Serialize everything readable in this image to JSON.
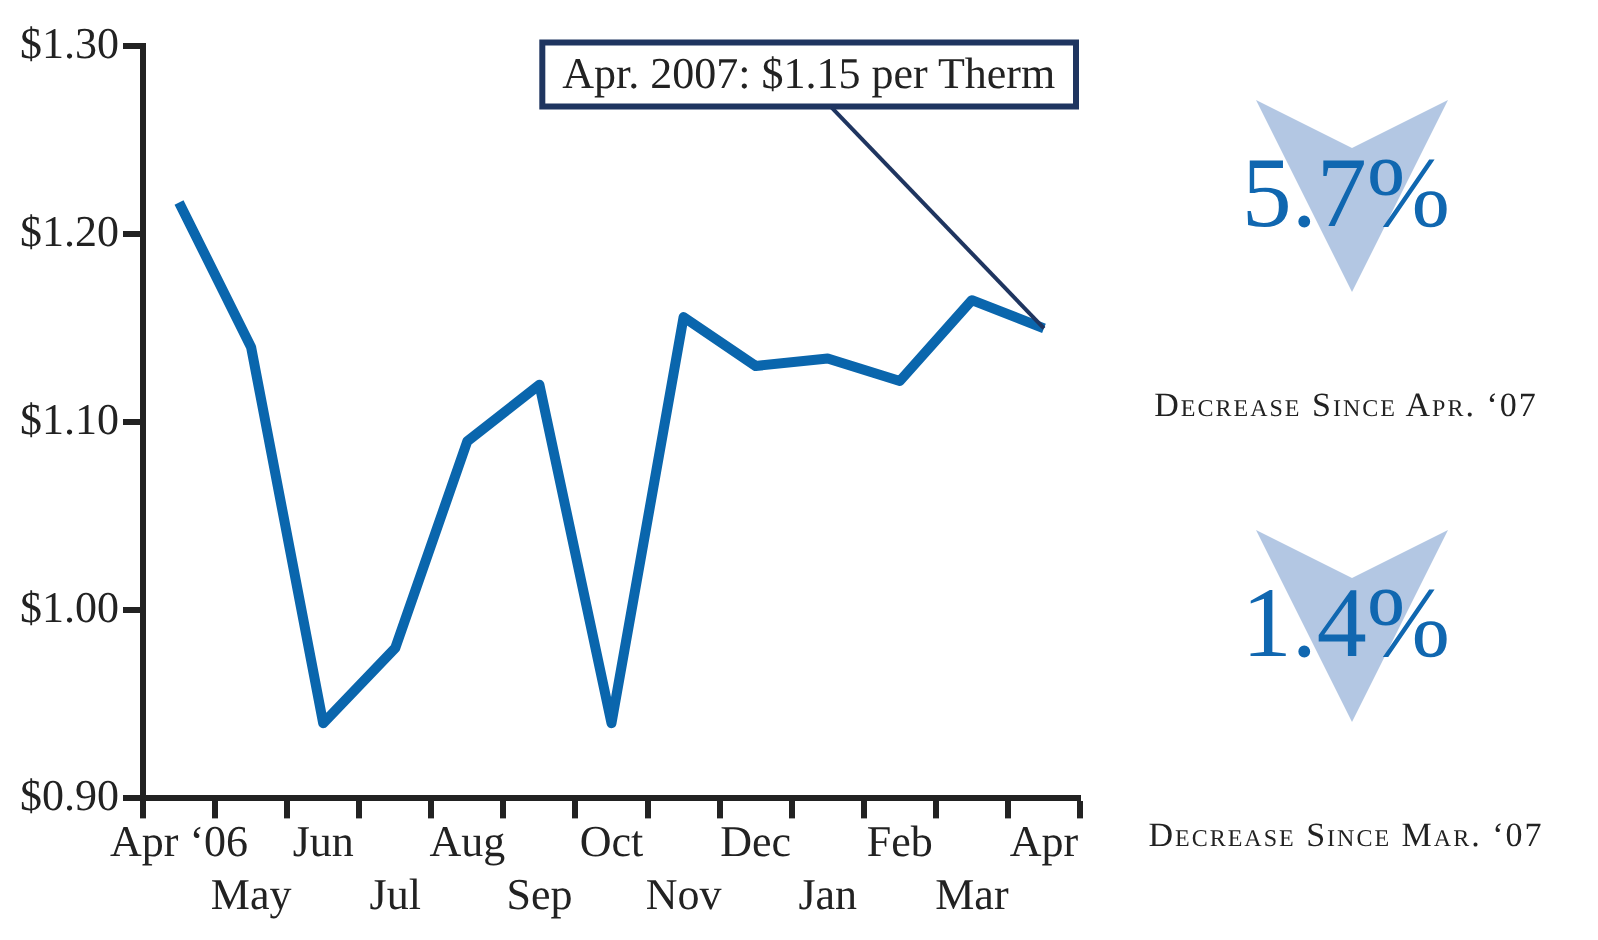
{
  "chart_data": {
    "type": "line",
    "categories": [
      "Apr ‘06",
      "May",
      "Jun",
      "Jul",
      "Aug",
      "Sep",
      "Oct",
      "Nov",
      "Dec",
      "Jan",
      "Feb",
      "Mar",
      "Apr"
    ],
    "series": [
      {
        "color": "#0a66ad",
        "values": [
          1.217,
          1.14,
          0.94,
          0.98,
          1.09,
          1.12,
          0.94,
          1.156,
          1.13,
          1.134,
          1.122,
          1.165,
          1.15
        ]
      }
    ],
    "ylim": [
      0.9,
      1.3
    ],
    "yticks": [
      {
        "value": 0.9,
        "label": "$0.90"
      },
      {
        "value": 1.0,
        "label": "$1.00"
      },
      {
        "value": 1.1,
        "label": "$1.10"
      },
      {
        "value": 1.2,
        "label": "$1.20"
      },
      {
        "value": 1.3,
        "label": "$1.30"
      }
    ],
    "grid": false,
    "legend": false,
    "marker": "none",
    "line_style": "solid",
    "annotations": [
      {
        "text": "Apr. 2007: $1.15 per Therm",
        "x": "Apr",
        "y": 1.15
      },
      "5.7%",
      "Decrease Since Apr. ‘07",
      "1.4%",
      "Decrease Since Mar. ‘07"
    ]
  }
}
